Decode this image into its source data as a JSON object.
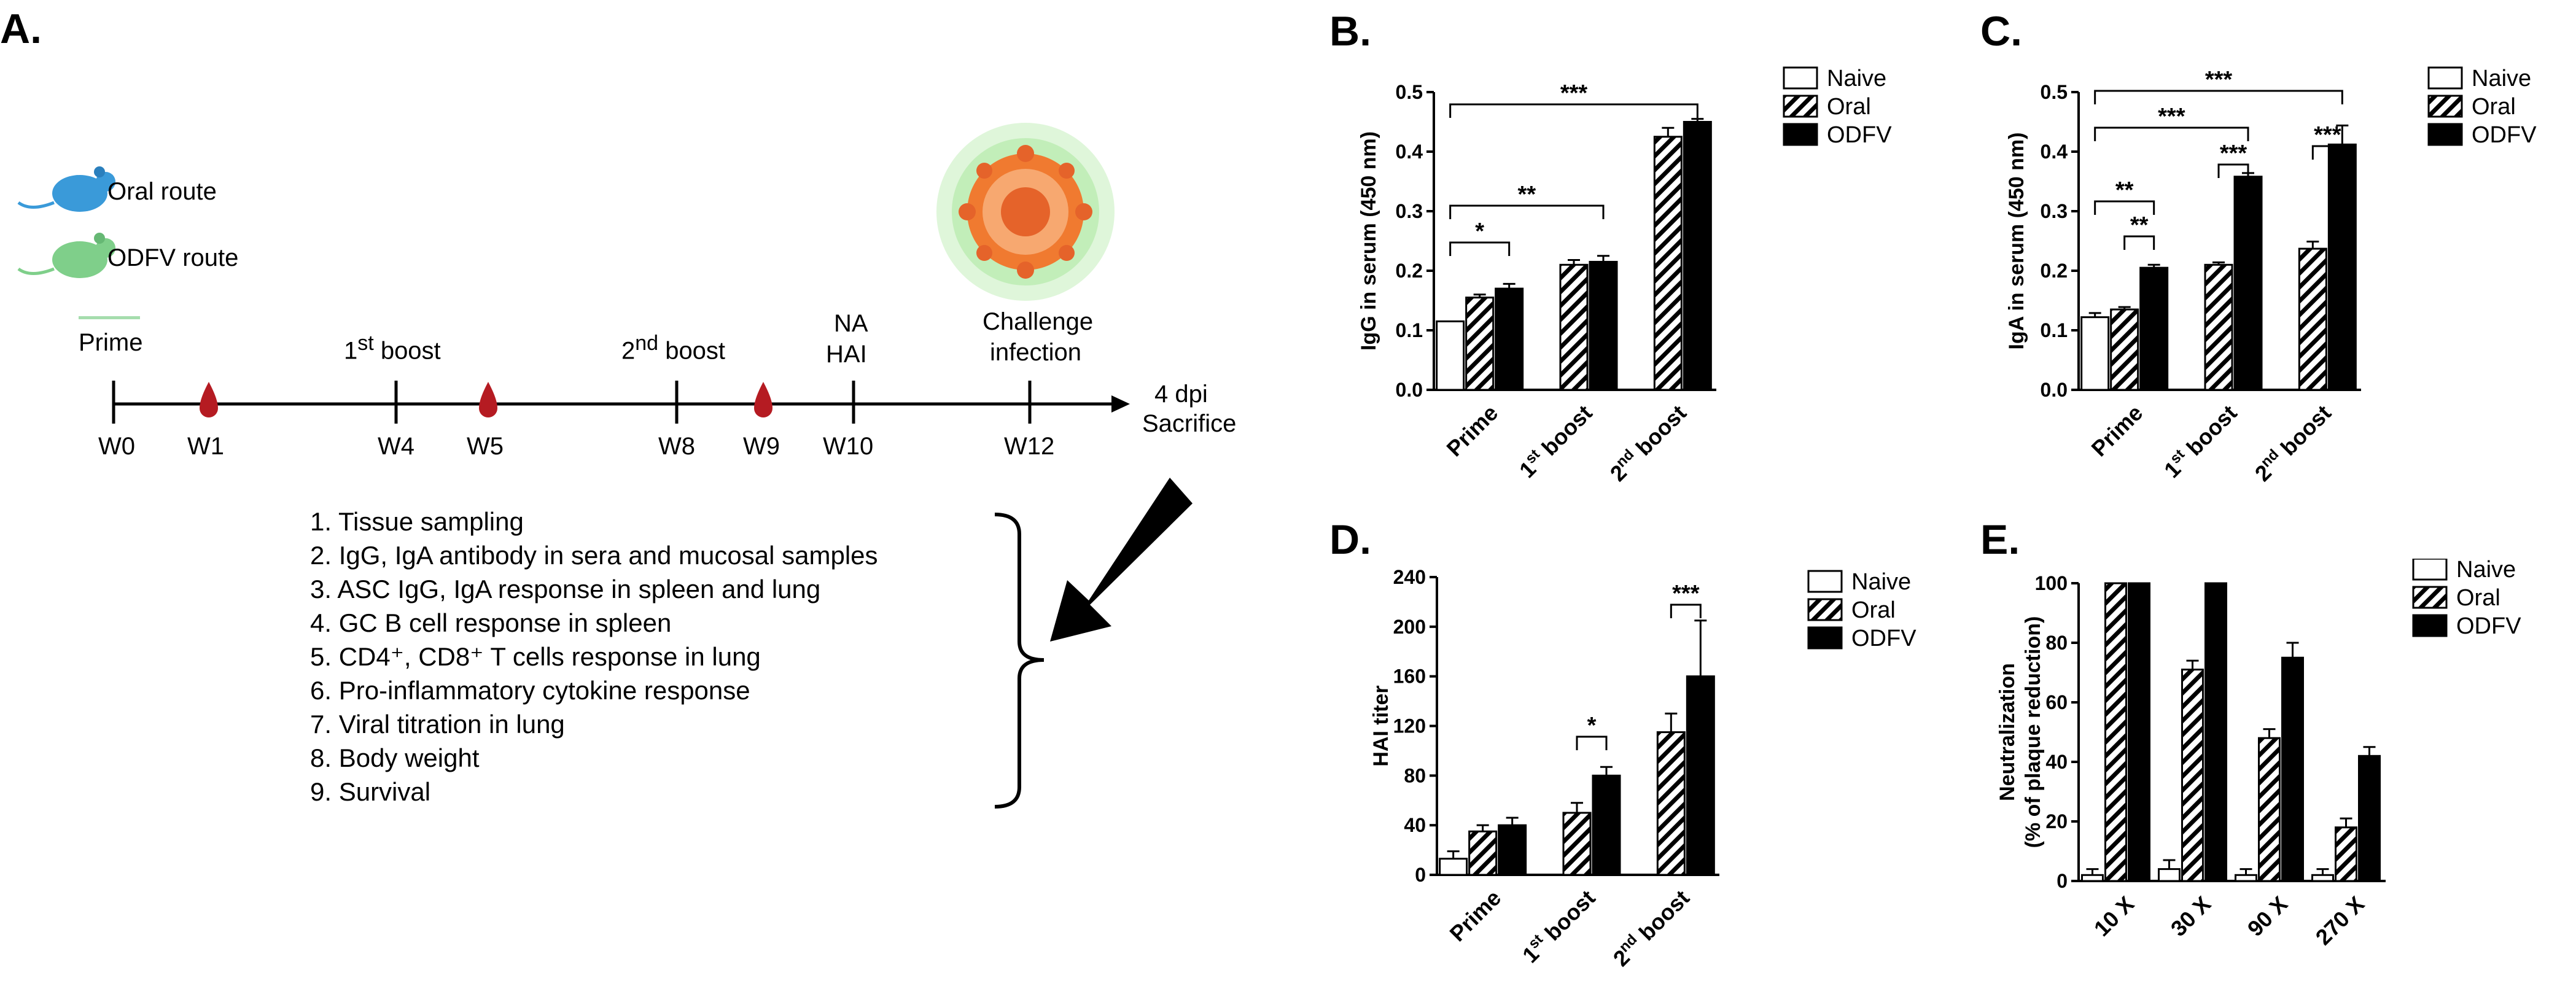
{
  "panel_labels": {
    "a": "A.",
    "b": "B.",
    "c": "C.",
    "d": "D.",
    "e": "E."
  },
  "timeline": {
    "routes": [
      "Oral route",
      "ODFV route"
    ],
    "events": {
      "prime": "Prime",
      "boost1_pre": "1",
      "boost1_sup": "st",
      "boost1_post": " boost",
      "boost2_pre": "2",
      "boost2_sup": "nd",
      "boost2_post": " boost",
      "na": "NA",
      "hai": "HAI",
      "challenge1": "Challenge",
      "challenge2": "infection"
    },
    "weeks": [
      "W0",
      "W1",
      "W4",
      "W5",
      "W8",
      "W9",
      "W10",
      "W12"
    ],
    "end1": "4 dpi",
    "end2": "Sacrifice",
    "analyses": [
      "1.  Tissue sampling",
      "2.  IgG, IgA antibody in sera and mucosal samples",
      "3.  ASC IgG, IgA response in spleen and lung",
      "4.  GC B cell response in spleen",
      "5.  CD4⁺, CD8⁺ T cells response in lung",
      "6.  Pro-inflammatory cytokine response",
      "7.  Viral titration in lung",
      "8.  Body weight",
      "9.  Survival"
    ]
  },
  "legend": [
    "Naive",
    "Oral",
    "ODFV"
  ],
  "colors": {
    "blood": "#b51b22",
    "mouse_oral": "#3a9ad9",
    "mouse_odfv": "#7fcf8a",
    "virus": "#f07a30",
    "virus_glow": "#8be07a",
    "arrow": "#000000"
  },
  "chart_data": [
    {
      "id": "B",
      "type": "bar",
      "ylabel": "IgG in serum (450 nm)",
      "categories": [
        "Prime",
        "1st boost",
        "2nd boost"
      ],
      "ylim": [
        0,
        0.5
      ],
      "yticks": [
        "0.0",
        "0.1",
        "0.2",
        "0.3",
        "0.4",
        "0.5"
      ],
      "series": [
        {
          "name": "Naive",
          "values": [
            0.115,
            null,
            null
          ],
          "errors": [
            0,
            0,
            0
          ]
        },
        {
          "name": "Oral",
          "values": [
            0.155,
            0.21,
            0.425
          ],
          "errors": [
            0.005,
            0.008,
            0.015
          ]
        },
        {
          "name": "ODFV",
          "values": [
            0.17,
            0.215,
            0.45
          ],
          "errors": [
            0.008,
            0.01,
            0.005
          ]
        }
      ],
      "significance": [
        "*",
        "**",
        "***"
      ]
    },
    {
      "id": "C",
      "type": "bar",
      "ylabel": "IgA in serum (450 nm)",
      "categories": [
        "Prime",
        "1st boost",
        "2nd boost"
      ],
      "ylim": [
        0,
        0.5
      ],
      "yticks": [
        "0.0",
        "0.1",
        "0.2",
        "0.3",
        "0.4",
        "0.5"
      ],
      "series": [
        {
          "name": "Naive",
          "values": [
            0.122,
            null,
            null
          ],
          "errors": [
            0.007,
            0,
            0
          ]
        },
        {
          "name": "Oral",
          "values": [
            0.135,
            0.21,
            0.237
          ],
          "errors": [
            0.004,
            0.004,
            0.012
          ]
        },
        {
          "name": "ODFV",
          "values": [
            0.205,
            0.358,
            0.412
          ],
          "errors": [
            0.005,
            0.006,
            0.032
          ]
        }
      ],
      "significance": [
        "**",
        "**",
        "***",
        "***",
        "***",
        "***"
      ]
    },
    {
      "id": "D",
      "type": "bar",
      "ylabel": "HAI titer",
      "categories": [
        "Prime",
        "1st boost",
        "2nd boost"
      ],
      "ylim": [
        0,
        240
      ],
      "yticks": [
        "0",
        "40",
        "80",
        "120",
        "160",
        "200",
        "240"
      ],
      "series": [
        {
          "name": "Naive",
          "values": [
            13,
            null,
            null
          ],
          "errors": [
            6,
            0,
            0
          ]
        },
        {
          "name": "Oral",
          "values": [
            35,
            50,
            115
          ],
          "errors": [
            5,
            8,
            15
          ]
        },
        {
          "name": "ODFV",
          "values": [
            40,
            80,
            160
          ],
          "errors": [
            6,
            7,
            45
          ]
        }
      ],
      "significance": [
        "*",
        "***"
      ]
    },
    {
      "id": "E",
      "type": "bar",
      "ylabel": "Neutralization (% of plaque reduction)",
      "categories": [
        "10 X",
        "30 X",
        "90 X",
        "270 X"
      ],
      "ylim": [
        0,
        100
      ],
      "yticks": [
        "0",
        "20",
        "40",
        "60",
        "80",
        "100"
      ],
      "series": [
        {
          "name": "Naive",
          "values": [
            2,
            4,
            2,
            2
          ],
          "errors": [
            2,
            3,
            2,
            2
          ]
        },
        {
          "name": "Oral",
          "values": [
            100,
            71,
            48,
            18
          ],
          "errors": [
            0,
            3,
            3,
            3
          ]
        },
        {
          "name": "ODFV",
          "values": [
            100,
            100,
            75,
            42
          ],
          "errors": [
            0,
            0,
            5,
            3
          ]
        }
      ]
    }
  ]
}
